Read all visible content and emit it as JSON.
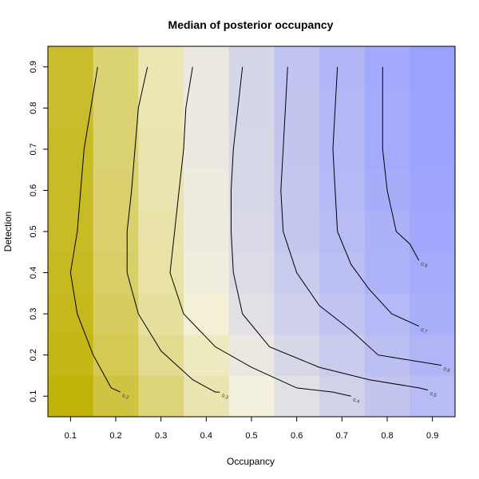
{
  "chart_data": {
    "type": "heatmap",
    "title": "Median of posterior occupancy",
    "xlabel": "Occupancy",
    "ylabel": "Detection",
    "x": [
      0.1,
      0.2,
      0.3,
      0.4,
      0.5,
      0.6,
      0.7,
      0.8,
      0.9
    ],
    "y": [
      0.1,
      0.2,
      0.3,
      0.4,
      0.5,
      0.6,
      0.7,
      0.8,
      0.9
    ],
    "x_ticks": [
      "0.1",
      "0.2",
      "0.3",
      "0.4",
      "0.5",
      "0.6",
      "0.7",
      "0.8",
      "0.9"
    ],
    "y_ticks": [
      "0.1",
      "0.2",
      "0.3",
      "0.4",
      "0.5",
      "0.6",
      "0.7",
      "0.8",
      "0.9"
    ],
    "xlim": [
      0.05,
      0.95
    ],
    "ylim": [
      0.05,
      0.95
    ],
    "color_scale": {
      "low": "#bfb000",
      "mid": "#f5f2dc",
      "high": "#9aa1ff"
    },
    "z_range": [
      0.08,
      0.88
    ],
    "z": [
      [
        0.1,
        0.2,
        0.3,
        0.4,
        0.49,
        0.57,
        0.64,
        0.7,
        0.75
      ],
      [
        0.12,
        0.23,
        0.34,
        0.43,
        0.53,
        0.61,
        0.67,
        0.73,
        0.78
      ],
      [
        0.13,
        0.25,
        0.37,
        0.47,
        0.57,
        0.65,
        0.71,
        0.76,
        0.81
      ],
      [
        0.14,
        0.27,
        0.38,
        0.5,
        0.59,
        0.67,
        0.73,
        0.79,
        0.83
      ],
      [
        0.15,
        0.28,
        0.39,
        0.51,
        0.6,
        0.69,
        0.75,
        0.8,
        0.85
      ],
      [
        0.15,
        0.28,
        0.4,
        0.51,
        0.61,
        0.69,
        0.76,
        0.82,
        0.86
      ],
      [
        0.15,
        0.29,
        0.4,
        0.52,
        0.61,
        0.7,
        0.77,
        0.83,
        0.87
      ],
      [
        0.16,
        0.29,
        0.41,
        0.52,
        0.62,
        0.7,
        0.77,
        0.83,
        0.87
      ],
      [
        0.16,
        0.29,
        0.41,
        0.53,
        0.62,
        0.71,
        0.78,
        0.84,
        0.88
      ]
    ],
    "contours": [
      {
        "level": "0.2",
        "points": [
          [
            0.16,
            0.9
          ],
          [
            0.13,
            0.7
          ],
          [
            0.115,
            0.5
          ],
          [
            0.1,
            0.4
          ],
          [
            0.115,
            0.3
          ],
          [
            0.15,
            0.2
          ],
          [
            0.19,
            0.12
          ],
          [
            0.21,
            0.11
          ]
        ]
      },
      {
        "level": "0.3",
        "points": [
          [
            0.27,
            0.9
          ],
          [
            0.25,
            0.8
          ],
          [
            0.235,
            0.6
          ],
          [
            0.225,
            0.5
          ],
          [
            0.225,
            0.4
          ],
          [
            0.25,
            0.3
          ],
          [
            0.3,
            0.21
          ],
          [
            0.37,
            0.14
          ],
          [
            0.42,
            0.11
          ],
          [
            0.43,
            0.11
          ]
        ]
      },
      {
        "level": "0.4",
        "points": [
          [
            0.37,
            0.9
          ],
          [
            0.355,
            0.8
          ],
          [
            0.35,
            0.7
          ],
          [
            0.34,
            0.6
          ],
          [
            0.33,
            0.5
          ],
          [
            0.32,
            0.4
          ],
          [
            0.35,
            0.3
          ],
          [
            0.42,
            0.22
          ],
          [
            0.5,
            0.17
          ],
          [
            0.6,
            0.12
          ],
          [
            0.68,
            0.11
          ],
          [
            0.72,
            0.1
          ]
        ]
      },
      {
        "level": "0.5",
        "points": [
          [
            0.48,
            0.9
          ],
          [
            0.47,
            0.8
          ],
          [
            0.46,
            0.7
          ],
          [
            0.455,
            0.6
          ],
          [
            0.455,
            0.5
          ],
          [
            0.46,
            0.4
          ],
          [
            0.48,
            0.3
          ],
          [
            0.54,
            0.22
          ],
          [
            0.65,
            0.17
          ],
          [
            0.76,
            0.14
          ],
          [
            0.87,
            0.12
          ],
          [
            0.89,
            0.115
          ]
        ]
      },
      {
        "level": "0.6",
        "points": [
          [
            0.58,
            0.9
          ],
          [
            0.575,
            0.8
          ],
          [
            0.57,
            0.7
          ],
          [
            0.565,
            0.6
          ],
          [
            0.57,
            0.5
          ],
          [
            0.6,
            0.4
          ],
          [
            0.65,
            0.32
          ],
          [
            0.72,
            0.26
          ],
          [
            0.78,
            0.2
          ],
          [
            0.92,
            0.175
          ]
        ]
      },
      {
        "level": "0.7",
        "points": [
          [
            0.69,
            0.9
          ],
          [
            0.685,
            0.8
          ],
          [
            0.68,
            0.7
          ],
          [
            0.685,
            0.6
          ],
          [
            0.69,
            0.5
          ],
          [
            0.72,
            0.42
          ],
          [
            0.76,
            0.36
          ],
          [
            0.81,
            0.3
          ],
          [
            0.87,
            0.27
          ]
        ]
      },
      {
        "level": "0.8",
        "points": [
          [
            0.79,
            0.9
          ],
          [
            0.79,
            0.8
          ],
          [
            0.79,
            0.7
          ],
          [
            0.8,
            0.6
          ],
          [
            0.82,
            0.5
          ],
          [
            0.85,
            0.47
          ],
          [
            0.87,
            0.43
          ]
        ]
      }
    ],
    "grid": false,
    "legend": "none"
  }
}
